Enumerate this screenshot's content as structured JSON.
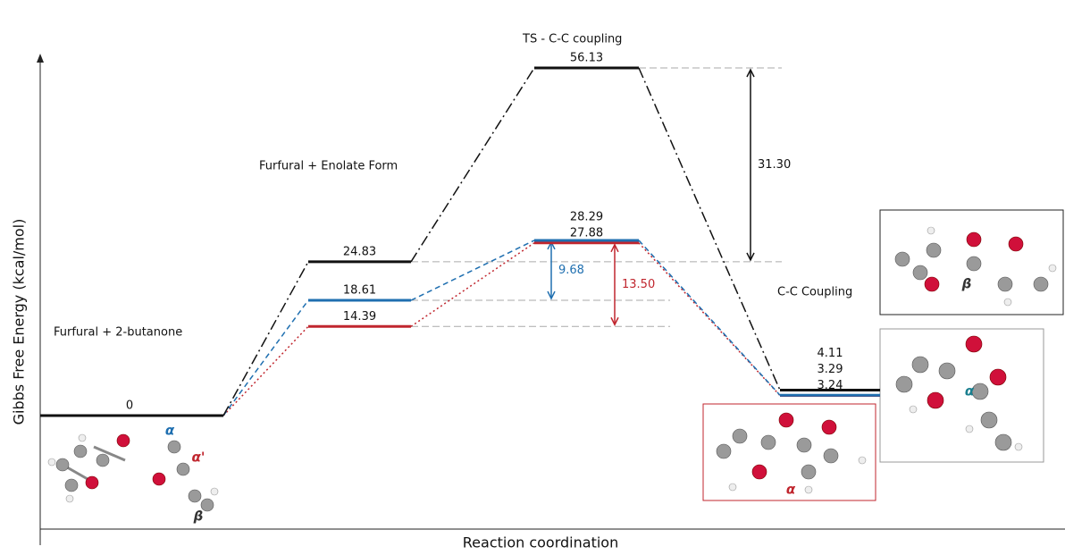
{
  "chart_data": {
    "type": "energy-profile",
    "y_label": "Gibbs Free Energy (kcal/mol)",
    "x_label": "Reaction coordination",
    "stages": [
      "Furfural + 2-butanone",
      "Furfural + Enolate Form",
      "TS - C-C coupling",
      "C-C Coupling"
    ],
    "series": [
      {
        "color": "#111111",
        "line_style": "dashdot",
        "values": [
          0,
          24.83,
          56.13,
          4.11
        ]
      },
      {
        "color": "#1f6fb0",
        "line_style": "dashed",
        "values": [
          0,
          18.61,
          28.29,
          3.29
        ]
      },
      {
        "color": "#c0262e",
        "line_style": "dotted",
        "values": [
          0,
          14.39,
          27.88,
          3.24
        ]
      }
    ],
    "barriers": {
      "values": [
        31.3,
        9.68,
        13.5
      ],
      "value_labels": [
        "31.30",
        "9.68",
        "13.50"
      ]
    },
    "annotations": [
      {
        "text": "α",
        "color": "#1f6fb0"
      },
      {
        "text": "α'",
        "color": "#c0262e"
      },
      {
        "text": "β",
        "color": "#333333"
      },
      {
        "text": "β",
        "color": "#333333"
      },
      {
        "text": "α",
        "color": "#1a7f8f"
      },
      {
        "text": "α",
        "color": "#c0262e"
      }
    ]
  }
}
